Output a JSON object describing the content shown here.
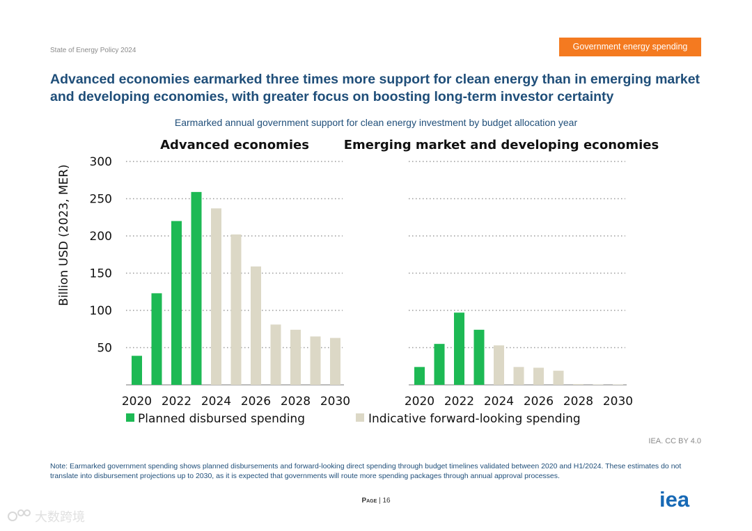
{
  "header": {
    "report_name": "State of Energy Policy 2024",
    "section_tag": "Government energy spending",
    "headline": "Advanced economies earmarked three times more support for clean energy than in emerging market and developing economies, with greater focus on boosting long-term investor certainty",
    "subtitle": "Earmarked annual government support for clean energy investment by budget allocation year"
  },
  "chart_data": {
    "type": "bar",
    "ylabel": "Billion USD (2023, MER)",
    "ylim": [
      0,
      300
    ],
    "yticks": [
      50,
      100,
      150,
      200,
      250,
      300
    ],
    "grid": "dotted horizontal",
    "xticks": [
      "2020",
      "2022",
      "2024",
      "2026",
      "2028",
      "2030"
    ],
    "categories": [
      "2020",
      "2021",
      "2022",
      "2023",
      "2024",
      "2025",
      "2026",
      "2027",
      "2028",
      "2029",
      "2030"
    ],
    "legend": [
      {
        "name": "Planned disbursed spending",
        "color": "#1db954"
      },
      {
        "name": "Indicative forward-looking spending",
        "color": "#dcd8c6"
      }
    ],
    "panels": [
      {
        "title": "Advanced economies",
        "values": [
          39,
          123,
          220,
          259,
          237,
          202,
          159,
          81,
          74,
          65,
          63
        ],
        "types": [
          "planned",
          "planned",
          "planned",
          "planned",
          "indicative",
          "indicative",
          "indicative",
          "indicative",
          "indicative",
          "indicative",
          "indicative"
        ]
      },
      {
        "title": "Emerging market and developing economies",
        "values": [
          24,
          55,
          97,
          74,
          53,
          24,
          23,
          19,
          1,
          0.5,
          0.5
        ],
        "types": [
          "planned",
          "planned",
          "planned",
          "planned",
          "indicative",
          "indicative",
          "indicative",
          "indicative",
          "indicative",
          "indicative",
          "indicative"
        ]
      }
    ]
  },
  "footer": {
    "credit": "IEA. CC BY 4.0",
    "note": "Note: Earmarked government spending shows planned disbursements and forward-looking direct spending through budget timelines validated between 2020 and H1/2024. These estimates do not translate into disbursement projections up to 2030, as it is expected that governments will route more spending packages through annual approval processes.",
    "page_label": "Page",
    "page_sep": " | ",
    "page_number": "16",
    "logo_text": "iea",
    "watermark_text": "大数跨境",
    "logo_color": "#1769b5"
  }
}
